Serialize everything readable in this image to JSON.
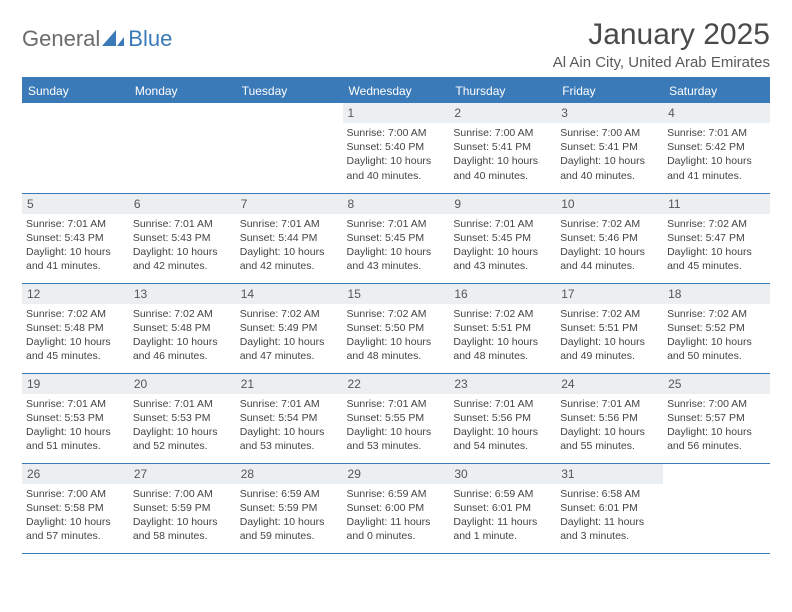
{
  "logo": {
    "general": "General",
    "blue": "Blue"
  },
  "title": "January 2025",
  "location": "Al Ain City, United Arab Emirates",
  "style": {
    "header_bg": "#3a7ab8",
    "header_text": "#ffffff",
    "daynum_bg": "#eceff1",
    "border_color": "#3a7ab8",
    "body_font_size": 10.5,
    "title_font_size": 30,
    "location_font_size": 15
  },
  "weekdays": [
    "Sunday",
    "Monday",
    "Tuesday",
    "Wednesday",
    "Thursday",
    "Friday",
    "Saturday"
  ],
  "weeks": [
    [
      null,
      null,
      null,
      {
        "d": "1",
        "sr": "7:00 AM",
        "ss": "5:40 PM",
        "dl": "10 hours and 40 minutes."
      },
      {
        "d": "2",
        "sr": "7:00 AM",
        "ss": "5:41 PM",
        "dl": "10 hours and 40 minutes."
      },
      {
        "d": "3",
        "sr": "7:00 AM",
        "ss": "5:41 PM",
        "dl": "10 hours and 40 minutes."
      },
      {
        "d": "4",
        "sr": "7:01 AM",
        "ss": "5:42 PM",
        "dl": "10 hours and 41 minutes."
      }
    ],
    [
      {
        "d": "5",
        "sr": "7:01 AM",
        "ss": "5:43 PM",
        "dl": "10 hours and 41 minutes."
      },
      {
        "d": "6",
        "sr": "7:01 AM",
        "ss": "5:43 PM",
        "dl": "10 hours and 42 minutes."
      },
      {
        "d": "7",
        "sr": "7:01 AM",
        "ss": "5:44 PM",
        "dl": "10 hours and 42 minutes."
      },
      {
        "d": "8",
        "sr": "7:01 AM",
        "ss": "5:45 PM",
        "dl": "10 hours and 43 minutes."
      },
      {
        "d": "9",
        "sr": "7:01 AM",
        "ss": "5:45 PM",
        "dl": "10 hours and 43 minutes."
      },
      {
        "d": "10",
        "sr": "7:02 AM",
        "ss": "5:46 PM",
        "dl": "10 hours and 44 minutes."
      },
      {
        "d": "11",
        "sr": "7:02 AM",
        "ss": "5:47 PM",
        "dl": "10 hours and 45 minutes."
      }
    ],
    [
      {
        "d": "12",
        "sr": "7:02 AM",
        "ss": "5:48 PM",
        "dl": "10 hours and 45 minutes."
      },
      {
        "d": "13",
        "sr": "7:02 AM",
        "ss": "5:48 PM",
        "dl": "10 hours and 46 minutes."
      },
      {
        "d": "14",
        "sr": "7:02 AM",
        "ss": "5:49 PM",
        "dl": "10 hours and 47 minutes."
      },
      {
        "d": "15",
        "sr": "7:02 AM",
        "ss": "5:50 PM",
        "dl": "10 hours and 48 minutes."
      },
      {
        "d": "16",
        "sr": "7:02 AM",
        "ss": "5:51 PM",
        "dl": "10 hours and 48 minutes."
      },
      {
        "d": "17",
        "sr": "7:02 AM",
        "ss": "5:51 PM",
        "dl": "10 hours and 49 minutes."
      },
      {
        "d": "18",
        "sr": "7:02 AM",
        "ss": "5:52 PM",
        "dl": "10 hours and 50 minutes."
      }
    ],
    [
      {
        "d": "19",
        "sr": "7:01 AM",
        "ss": "5:53 PM",
        "dl": "10 hours and 51 minutes."
      },
      {
        "d": "20",
        "sr": "7:01 AM",
        "ss": "5:53 PM",
        "dl": "10 hours and 52 minutes."
      },
      {
        "d": "21",
        "sr": "7:01 AM",
        "ss": "5:54 PM",
        "dl": "10 hours and 53 minutes."
      },
      {
        "d": "22",
        "sr": "7:01 AM",
        "ss": "5:55 PM",
        "dl": "10 hours and 53 minutes."
      },
      {
        "d": "23",
        "sr": "7:01 AM",
        "ss": "5:56 PM",
        "dl": "10 hours and 54 minutes."
      },
      {
        "d": "24",
        "sr": "7:01 AM",
        "ss": "5:56 PM",
        "dl": "10 hours and 55 minutes."
      },
      {
        "d": "25",
        "sr": "7:00 AM",
        "ss": "5:57 PM",
        "dl": "10 hours and 56 minutes."
      }
    ],
    [
      {
        "d": "26",
        "sr": "7:00 AM",
        "ss": "5:58 PM",
        "dl": "10 hours and 57 minutes."
      },
      {
        "d": "27",
        "sr": "7:00 AM",
        "ss": "5:59 PM",
        "dl": "10 hours and 58 minutes."
      },
      {
        "d": "28",
        "sr": "6:59 AM",
        "ss": "5:59 PM",
        "dl": "10 hours and 59 minutes."
      },
      {
        "d": "29",
        "sr": "6:59 AM",
        "ss": "6:00 PM",
        "dl": "11 hours and 0 minutes."
      },
      {
        "d": "30",
        "sr": "6:59 AM",
        "ss": "6:01 PM",
        "dl": "11 hours and 1 minute."
      },
      {
        "d": "31",
        "sr": "6:58 AM",
        "ss": "6:01 PM",
        "dl": "11 hours and 3 minutes."
      },
      null
    ]
  ],
  "labels": {
    "sunrise": "Sunrise:",
    "sunset": "Sunset:",
    "daylight": "Daylight:"
  }
}
